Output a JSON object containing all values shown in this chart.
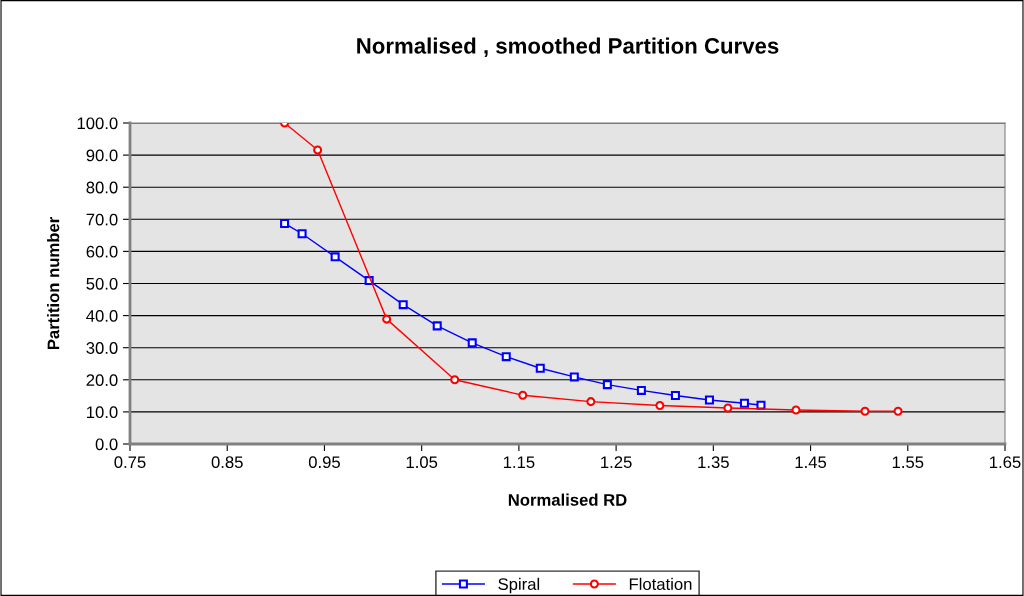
{
  "chart_data": {
    "type": "line",
    "title": "Normalised , smoothed Partition Curves",
    "xlabel": "Normalised RD",
    "ylabel": "Partition number",
    "series": [
      {
        "name": "Spiral",
        "color": "#0000ff",
        "marker": "square",
        "x": [
          0.909,
          0.927,
          0.961,
          0.996,
          1.031,
          1.066,
          1.102,
          1.137,
          1.172,
          1.207,
          1.241,
          1.276,
          1.311,
          1.346,
          1.382,
          1.399
        ],
        "values": [
          68.7,
          65.5,
          58.3,
          50.9,
          43.4,
          36.8,
          31.5,
          27.2,
          23.6,
          20.9,
          18.5,
          16.7,
          15.1,
          13.7,
          12.7,
          12.1
        ]
      },
      {
        "name": "Flotation",
        "color": "#ff0000",
        "marker": "circle",
        "x": [
          0.909,
          0.943,
          1.014,
          1.084,
          1.154,
          1.224,
          1.295,
          1.365,
          1.435,
          1.506,
          1.54
        ],
        "values": [
          100.0,
          91.6,
          38.9,
          20.0,
          15.2,
          13.2,
          12.0,
          11.2,
          10.6,
          10.2,
          10.2
        ]
      }
    ],
    "xlim": [
      0.75,
      1.65
    ],
    "xticks": [
      {
        "value": 0.75,
        "label": "0.75"
      },
      {
        "value": 0.85,
        "label": "0.85"
      },
      {
        "value": 0.95,
        "label": "0.95"
      },
      {
        "value": 1.05,
        "label": "1.05"
      },
      {
        "value": 1.15,
        "label": "1.15"
      },
      {
        "value": 1.25,
        "label": "1.25"
      },
      {
        "value": 1.35,
        "label": "1.35"
      },
      {
        "value": 1.45,
        "label": "1.45"
      },
      {
        "value": 1.55,
        "label": "1.55"
      },
      {
        "value": 1.65,
        "label": "1.65"
      }
    ],
    "ylim": [
      0,
      100
    ],
    "yticks": [
      {
        "value": 0,
        "label": "0.0"
      },
      {
        "value": 10,
        "label": "10.0"
      },
      {
        "value": 20,
        "label": "20.0"
      },
      {
        "value": 30,
        "label": "30.0"
      },
      {
        "value": 40,
        "label": "40.0"
      },
      {
        "value": 50,
        "label": "50.0"
      },
      {
        "value": 60,
        "label": "60.0"
      },
      {
        "value": 70,
        "label": "70.0"
      },
      {
        "value": 80,
        "label": "80.0"
      },
      {
        "value": 90,
        "label": "90.0"
      },
      {
        "value": 100,
        "label": "100.0"
      }
    ],
    "grid": "y",
    "legend": "bottom",
    "line_style": "solid"
  }
}
